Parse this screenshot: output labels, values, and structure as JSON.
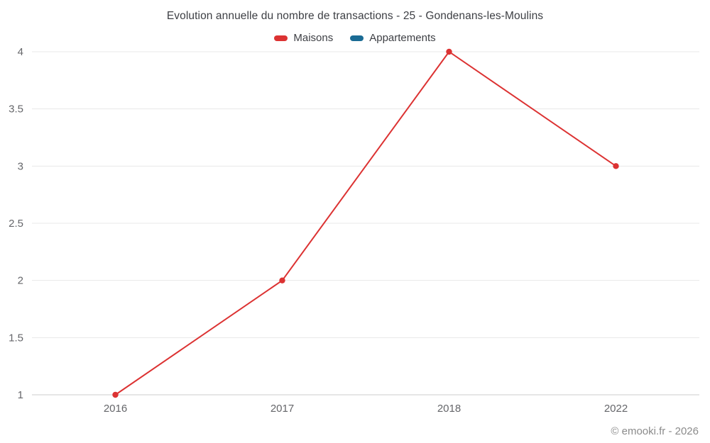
{
  "chart": {
    "footer": "© emooki.fr - 2026"
  },
  "chart_data": {
    "type": "line",
    "title": "Evolution annuelle du nombre de transactions - 25 - Gondenans-les-Moulins",
    "categories": [
      "2016",
      "2017",
      "2018",
      "2022"
    ],
    "series": [
      {
        "name": "Maisons",
        "color": "#dc3232",
        "values": [
          1,
          2,
          4,
          3
        ]
      },
      {
        "name": "Appartements",
        "color": "#1a6b94",
        "values": []
      }
    ],
    "xlabel": "",
    "ylabel": "",
    "ylim": [
      1,
      4
    ],
    "ytick_step": 0.5,
    "yticks": [
      "1",
      "1.5",
      "2",
      "2.5",
      "3",
      "3.5",
      "4"
    ],
    "grid": "horizontal-only",
    "legend_position": "top",
    "marker": "circle"
  }
}
